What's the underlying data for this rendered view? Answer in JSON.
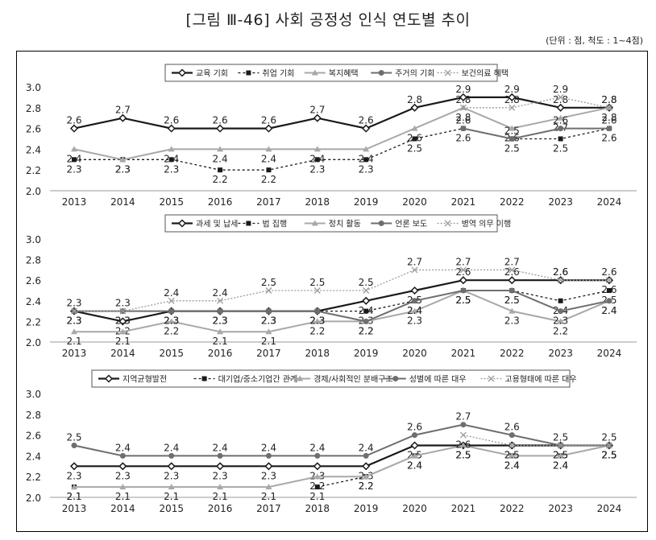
{
  "title": "[그림 Ⅲ-46] 사회 공정성 인식 연도별 추이",
  "unit_note": "(단위 : 점, 척도 : 1~4점)",
  "chart_data": [
    {
      "type": "line",
      "x": [
        "2013",
        "2014",
        "2015",
        "2016",
        "2017",
        "2018",
        "2019",
        "2020",
        "2021",
        "2022",
        "2023",
        "2024"
      ],
      "ylim": [
        2.0,
        3.0
      ],
      "yticks": [
        "2.0",
        "2.2",
        "2.4",
        "2.6",
        "2.8",
        "3.0"
      ],
      "legend_position": "top",
      "series": [
        {
          "name": "교육 기회",
          "values": [
            2.6,
            2.7,
            2.6,
            2.6,
            2.6,
            2.7,
            2.6,
            2.8,
            2.9,
            2.9,
            2.8,
            2.8
          ]
        },
        {
          "name": "취업 기회",
          "values": [
            2.3,
            2.3,
            2.3,
            2.2,
            2.2,
            2.3,
            2.3,
            2.5,
            2.6,
            2.5,
            2.5,
            2.6
          ]
        },
        {
          "name": "복지혜택",
          "values": [
            2.4,
            2.3,
            2.4,
            2.4,
            2.4,
            2.4,
            2.4,
            2.6,
            2.8,
            2.6,
            2.7,
            2.8
          ]
        },
        {
          "name": "주거의 기회",
          "values": [
            null,
            null,
            null,
            null,
            null,
            null,
            null,
            null,
            2.6,
            2.5,
            2.6,
            2.6
          ]
        },
        {
          "name": "보건의료 혜택",
          "values": [
            null,
            null,
            null,
            null,
            null,
            null,
            null,
            null,
            2.8,
            2.8,
            2.9,
            2.8
          ]
        }
      ]
    },
    {
      "type": "line",
      "x": [
        "2013",
        "2014",
        "2015",
        "2016",
        "2017",
        "2018",
        "2019",
        "2020",
        "2021",
        "2022",
        "2023",
        "2024"
      ],
      "ylim": [
        2.0,
        3.0
      ],
      "yticks": [
        "2.0",
        "2.2",
        "2.4",
        "2.6",
        "2.8",
        "3.0"
      ],
      "legend_position": "top",
      "series": [
        {
          "name": "과세 및 납세",
          "values": [
            2.3,
            2.2,
            2.3,
            2.3,
            2.3,
            2.3,
            2.4,
            2.5,
            2.6,
            2.6,
            2.6,
            2.6
          ]
        },
        {
          "name": "법 집행",
          "values": [
            2.3,
            2.3,
            2.3,
            2.3,
            2.3,
            2.3,
            2.3,
            2.4,
            2.5,
            2.5,
            2.4,
            2.5
          ]
        },
        {
          "name": "정치 활동",
          "values": [
            2.1,
            2.1,
            2.2,
            2.1,
            2.1,
            2.2,
            2.2,
            2.3,
            2.5,
            2.3,
            2.2,
            2.4
          ]
        },
        {
          "name": "언론 보도",
          "values": [
            2.3,
            2.3,
            2.3,
            2.3,
            2.3,
            2.3,
            2.2,
            2.4,
            2.5,
            2.5,
            2.3,
            2.4
          ]
        },
        {
          "name": "병역 의무 이행",
          "values": [
            2.3,
            2.3,
            2.4,
            2.4,
            2.5,
            2.5,
            2.5,
            2.7,
            2.7,
            2.7,
            2.6,
            2.6
          ]
        }
      ]
    },
    {
      "type": "line",
      "x": [
        "2013",
        "2014",
        "2015",
        "2016",
        "2017",
        "2018",
        "2019",
        "2020",
        "2021",
        "2022",
        "2023",
        "2024"
      ],
      "ylim": [
        2.0,
        3.0
      ],
      "yticks": [
        "2.0",
        "2.2",
        "2.4",
        "2.6",
        "2.8",
        "3.0"
      ],
      "legend_position": "top",
      "series": [
        {
          "name": "지역균형발전",
          "values": [
            2.3,
            2.3,
            2.3,
            2.3,
            2.3,
            2.3,
            2.3,
            2.5,
            2.5,
            2.5,
            2.5,
            2.5
          ]
        },
        {
          "name": "대기업/중소기업간 관계",
          "values": [
            2.1,
            null,
            null,
            null,
            null,
            2.1,
            2.2,
            2.4,
            2.5,
            2.4,
            2.4,
            2.5
          ]
        },
        {
          "name": "경제/사회적인 분배구조",
          "values": [
            2.1,
            2.1,
            2.1,
            2.1,
            2.1,
            2.2,
            2.2,
            2.4,
            2.5,
            2.4,
            2.4,
            2.5
          ]
        },
        {
          "name": "성별에 따른 대우",
          "values": [
            2.5,
            2.4,
            2.4,
            2.4,
            2.4,
            2.4,
            2.4,
            2.6,
            2.7,
            2.6,
            2.5,
            2.5
          ]
        },
        {
          "name": "고용형태에 따른 대우",
          "values": [
            null,
            null,
            null,
            null,
            null,
            null,
            null,
            null,
            2.6,
            2.5,
            2.5,
            2.5
          ]
        }
      ]
    }
  ]
}
